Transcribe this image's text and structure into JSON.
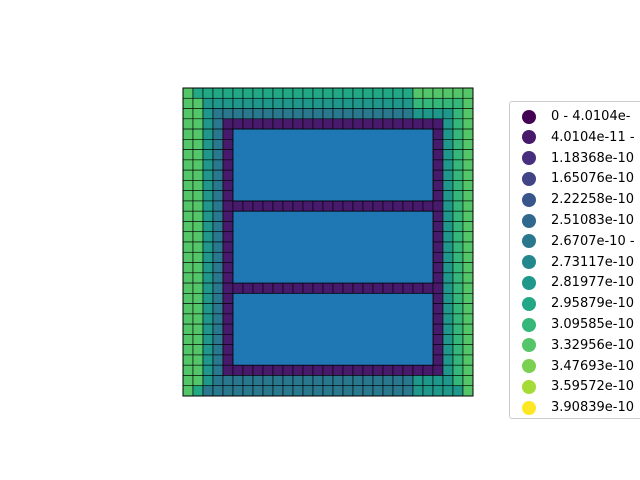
{
  "chart_data": {
    "type": "heatmap",
    "title": "",
    "xlabel": "",
    "ylabel": "",
    "grid": false,
    "legend_placement": "right, partially cut off",
    "legend_entries": [
      {
        "label": "0 - 4.0104e-",
        "color": "#440154"
      },
      {
        "label": "4.0104e-11 -",
        "color": "#481a6c"
      },
      {
        "label": "1.18368e-10",
        "color": "#472f7d"
      },
      {
        "label": "1.65076e-10",
        "color": "#414487"
      },
      {
        "label": "2.22258e-10",
        "color": "#39568c"
      },
      {
        "label": "2.51083e-10",
        "color": "#31688e"
      },
      {
        "label": "2.6707e-10 -",
        "color": "#2a788e"
      },
      {
        "label": "2.73117e-10",
        "color": "#23888e"
      },
      {
        "label": "2.81977e-10",
        "color": "#1f988b"
      },
      {
        "label": "2.95879e-10",
        "color": "#22a884"
      },
      {
        "label": "3.09585e-10",
        "color": "#35b779"
      },
      {
        "label": "3.32956e-10",
        "color": "#54c568"
      },
      {
        "label": "3.47693e-10",
        "color": "#7ad151"
      },
      {
        "label": "3.59572e-10",
        "color": "#a5db36"
      },
      {
        "label": "3.90839e-10",
        "color": "#fde725"
      }
    ],
    "grid_size": [
      29,
      30
    ],
    "inclusions": [
      {
        "cols": [
          5,
          24
        ],
        "rows": [
          4,
          10
        ]
      },
      {
        "cols": [
          5,
          24
        ],
        "rows": [
          12,
          18
        ]
      },
      {
        "cols": [
          5,
          24
        ],
        "rows": [
          20,
          26
        ]
      }
    ],
    "inclusion_color": "#1f77b4"
  }
}
